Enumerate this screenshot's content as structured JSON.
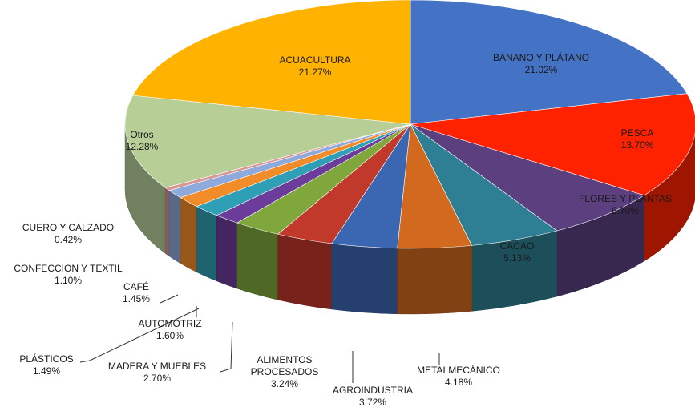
{
  "chart_data": {
    "type": "pie",
    "title": "",
    "three_d": true,
    "slices": [
      {
        "label": "BANANO Y PLÁTANO",
        "value": 21.02,
        "display": "21.02%",
        "color": "#4472C4"
      },
      {
        "label": "PESCA",
        "value": 13.7,
        "display": "13.70%",
        "color": "#FF2200"
      },
      {
        "label": "FLORES Y PLANTAS",
        "value": 6.7,
        "display": "6.70%",
        "color": "#5B3F7E"
      },
      {
        "label": "CACAO",
        "value": 5.13,
        "display": "5.13%",
        "color": "#2E7F93"
      },
      {
        "label": "METALMECÁNICO",
        "value": 4.18,
        "display": "4.18%",
        "color": "#D2691E"
      },
      {
        "label": "AGROINDUSTRIA",
        "value": 3.72,
        "display": "3.72%",
        "color": "#3B67B2"
      },
      {
        "label": "ALIMENTOS PROCESADOS",
        "value": 3.24,
        "display": "3.24%",
        "color": "#C0392B"
      },
      {
        "label": "MADERA Y MUEBLES",
        "value": 2.7,
        "display": "2.70%",
        "color": "#7FA73B"
      },
      {
        "label": "PLÁSTICOS",
        "value": 1.49,
        "display": "1.49%",
        "color": "#6C3C9A"
      },
      {
        "label": "AUTOMOTRIZ",
        "value": 1.6,
        "display": "1.60%",
        "color": "#2F9FB5"
      },
      {
        "label": "CAFÉ",
        "value": 1.45,
        "display": "1.45%",
        "color": "#F28C28"
      },
      {
        "label": "CONFECCION  Y TEXTIL",
        "value": 1.1,
        "display": "1.10%",
        "color": "#8EA9DB"
      },
      {
        "label": "CUERO Y CALZADO",
        "value": 0.42,
        "display": "0.42%",
        "color": "#D99694"
      },
      {
        "label": "Otros",
        "value": 12.28,
        "display": "12.28%",
        "color": "#B7CF97"
      },
      {
        "label": "ACUACULTURA",
        "value": 21.27,
        "display": "21.27%",
        "color": "#FFB300"
      }
    ]
  }
}
